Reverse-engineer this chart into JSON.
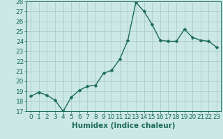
{
  "x": [
    0,
    1,
    2,
    3,
    4,
    5,
    6,
    7,
    8,
    9,
    10,
    11,
    12,
    13,
    14,
    15,
    16,
    17,
    18,
    19,
    20,
    21,
    22,
    23
  ],
  "y": [
    18.5,
    18.9,
    18.6,
    18.1,
    17.0,
    18.4,
    19.1,
    19.5,
    19.6,
    20.8,
    21.1,
    22.2,
    24.1,
    27.9,
    27.0,
    25.7,
    24.1,
    24.0,
    24.0,
    25.2,
    24.4,
    24.1,
    24.0,
    23.4
  ],
  "xlabel": "Humidex (Indice chaleur)",
  "ylim": [
    17,
    28
  ],
  "xlim_min": -0.5,
  "xlim_max": 23.5,
  "yticks": [
    17,
    18,
    19,
    20,
    21,
    22,
    23,
    24,
    25,
    26,
    27,
    28
  ],
  "xticks": [
    0,
    1,
    2,
    3,
    4,
    5,
    6,
    7,
    8,
    9,
    10,
    11,
    12,
    13,
    14,
    15,
    16,
    17,
    18,
    19,
    20,
    21,
    22,
    23
  ],
  "line_color": "#1a6b5a",
  "marker_color": "#1a6b5a",
  "bg_color": "#cce8e4",
  "grid_color": "#a8c8c2",
  "tick_label_fontsize": 6.5,
  "xlabel_fontsize": 7.5,
  "marker_size": 2.5,
  "line_width": 1.0
}
